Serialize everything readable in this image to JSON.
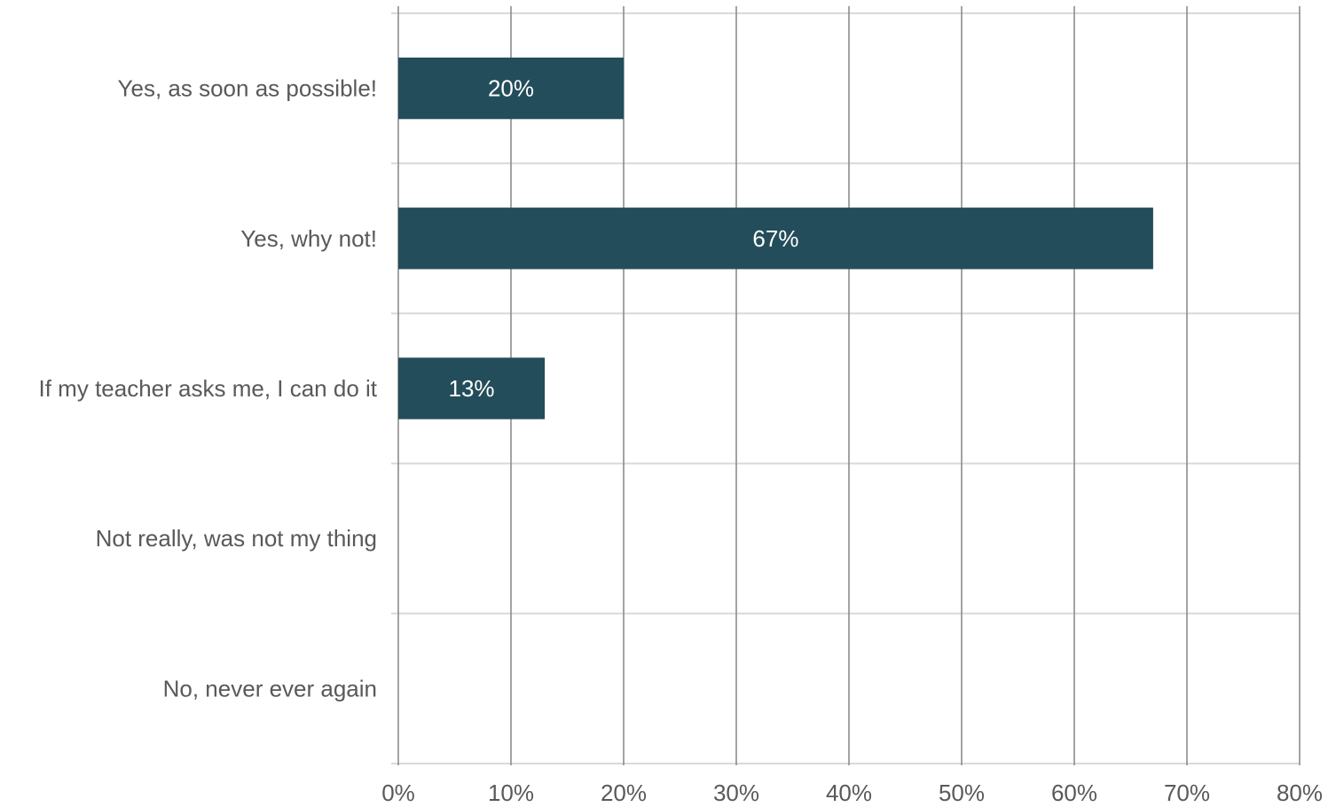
{
  "chart_data": {
    "type": "bar",
    "orientation": "horizontal",
    "categories": [
      "Yes, as soon as possible!",
      "Yes, why not!",
      "If my teacher asks me, I can do it",
      "Not really, was not my thing",
      "No, never ever again"
    ],
    "values": [
      20,
      67,
      13,
      0,
      0
    ],
    "data_labels": [
      "20%",
      "67%",
      "13%",
      "",
      ""
    ],
    "xlim": [
      0,
      80
    ],
    "xticks": [
      0,
      10,
      20,
      30,
      40,
      50,
      60,
      70,
      80
    ],
    "xtick_labels": [
      "0%",
      "10%",
      "20%",
      "30%",
      "40%",
      "50%",
      "60%",
      "70%",
      "80%"
    ],
    "title": "",
    "xlabel": "",
    "ylabel": "",
    "grid": true,
    "legend": "none",
    "colors": {
      "bar": "#234d5a",
      "grid_vertical": "#8c8c8c",
      "grid_horizontal": "#d9d9d9",
      "text": "#595959",
      "data_label": "#ffffff"
    }
  }
}
